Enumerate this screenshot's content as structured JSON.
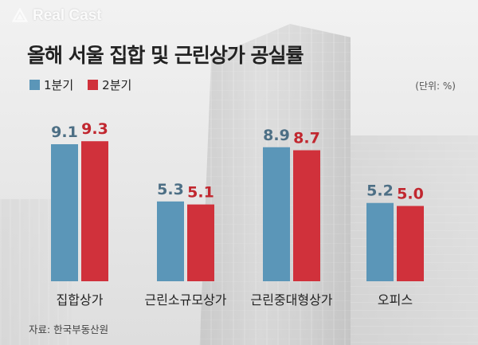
{
  "brand": "Real Cast",
  "title": "올해 서울 집합 및 근린상가 공실률",
  "unit_note": "(단위: %)",
  "source": "자료: 한국부동산원",
  "colors": {
    "q1": "#5b96b8",
    "q2": "#d0313b"
  },
  "chart_data": {
    "type": "bar",
    "title": "올해 서울 집합 및 근린상가 공실률",
    "categories": [
      "집합상가",
      "근린소규모상가",
      "근린중대형상가",
      "오피스"
    ],
    "series": [
      {
        "name": "1분기",
        "values": [
          9.1,
          5.3,
          8.9,
          5.2
        ],
        "labels": [
          "9.1",
          "5.3",
          "8.9",
          "5.2"
        ]
      },
      {
        "name": "2분기",
        "values": [
          9.3,
          5.1,
          8.7,
          5.0
        ],
        "labels": [
          "9.3",
          "5.1",
          "8.7",
          "5.0"
        ]
      }
    ],
    "xlabel": "",
    "ylabel": "",
    "ylim": [
      0,
      10
    ],
    "grid": false,
    "legend_position": "top-left"
  }
}
